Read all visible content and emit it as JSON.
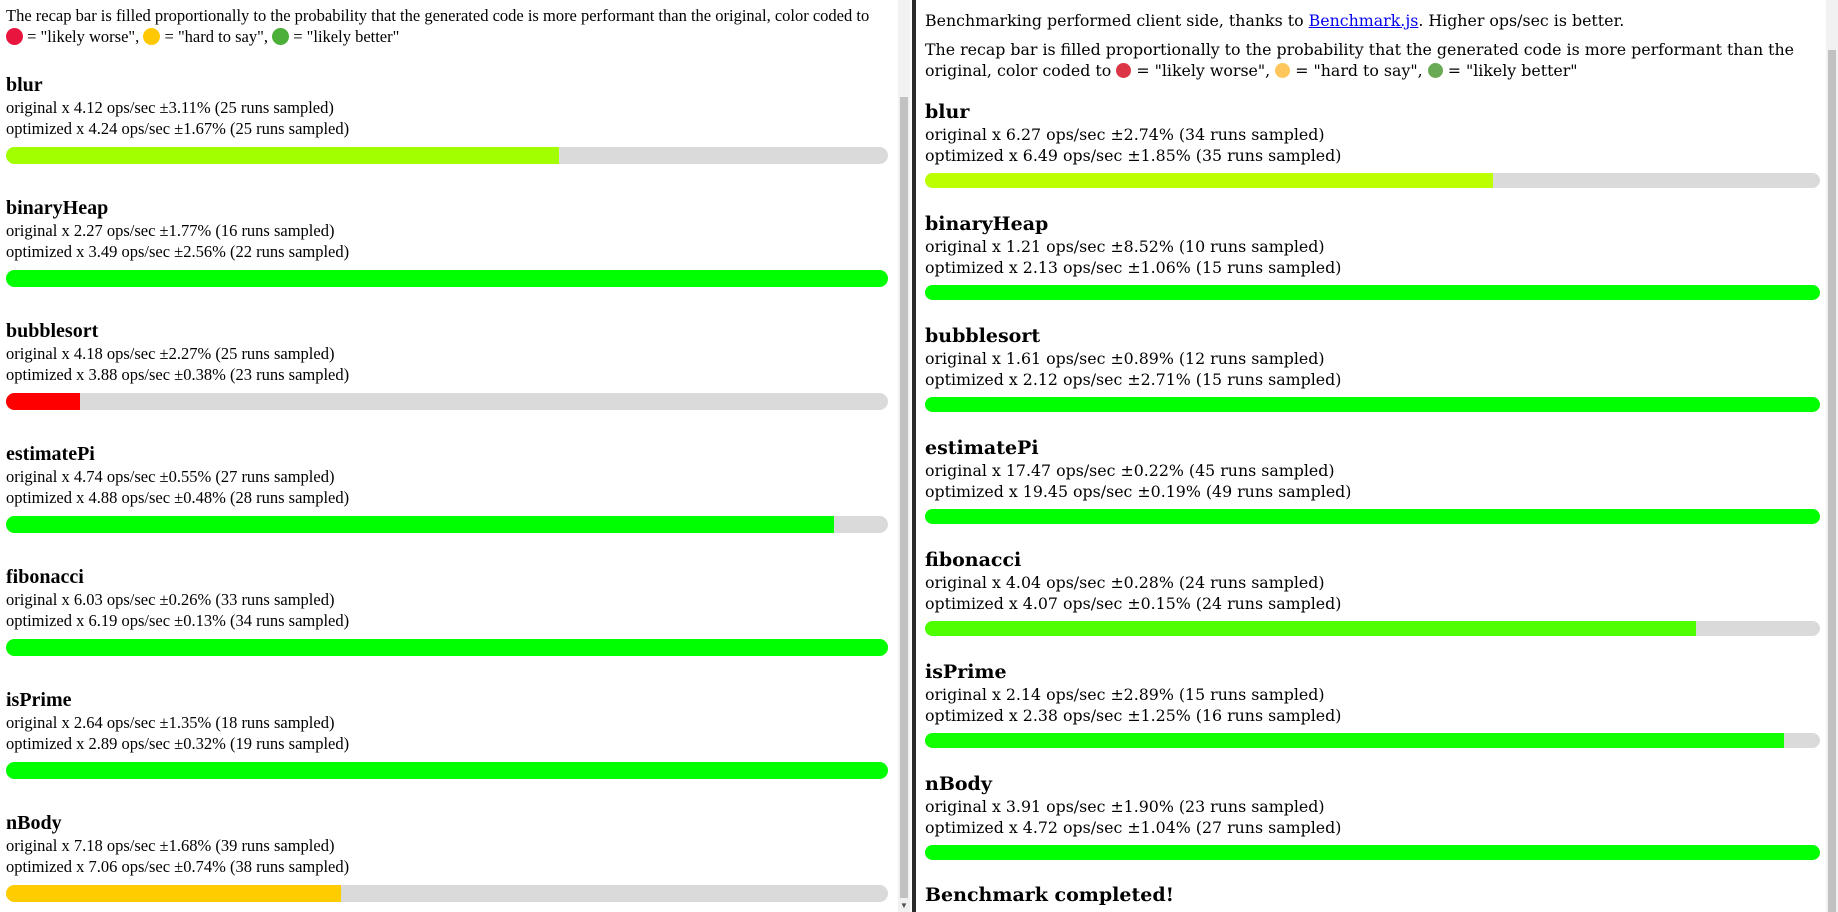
{
  "left": {
    "intro_pre": "The recap bar is filled proportionally to the probability that the generated code is more performant than the original, color coded to ",
    "legend": [
      {
        "color": "#e8163e",
        "label": " = \"likely worse\", "
      },
      {
        "color": "#ffc800",
        "label": " = \"hard to say\", "
      },
      {
        "color": "#4caf3a",
        "label": " = \"likely better\""
      }
    ],
    "benchmarks": [
      {
        "name": "blur",
        "original": "original x 4.12 ops/sec ±3.11% (25 runs sampled)",
        "optimized": "optimized x 4.24 ops/sec ±1.67% (25 runs sampled)",
        "fill": 0.627,
        "color": "#a2ff00"
      },
      {
        "name": "binaryHeap",
        "original": "original x 2.27 ops/sec ±1.77% (16 runs sampled)",
        "optimized": "optimized x 3.49 ops/sec ±2.56% (22 runs sampled)",
        "fill": 1.0,
        "color": "#00ff00"
      },
      {
        "name": "bubblesort",
        "original": "original x 4.18 ops/sec ±2.27% (25 runs sampled)",
        "optimized": "optimized x 3.88 ops/sec ±0.38% (23 runs sampled)",
        "fill": 0.084,
        "color": "#ff0000"
      },
      {
        "name": "estimatePi",
        "original": "original x 4.74 ops/sec ±0.55% (27 runs sampled)",
        "optimized": "optimized x 4.88 ops/sec ±0.48% (28 runs sampled)",
        "fill": 0.939,
        "color": "#00ff00"
      },
      {
        "name": "fibonacci",
        "original": "original x 6.03 ops/sec ±0.26% (33 runs sampled)",
        "optimized": "optimized x 6.19 ops/sec ±0.13% (34 runs sampled)",
        "fill": 1.0,
        "color": "#00ff00"
      },
      {
        "name": "isPrime",
        "original": "original x 2.64 ops/sec ±1.35% (18 runs sampled)",
        "optimized": "optimized x 2.89 ops/sec ±0.32% (19 runs sampled)",
        "fill": 1.0,
        "color": "#00ff00"
      },
      {
        "name": "nBody",
        "original": "original x 7.18 ops/sec ±1.68% (39 runs sampled)",
        "optimized": "optimized x 7.06 ops/sec ±0.74% (38 runs sampled)",
        "fill": 0.38,
        "color": "#ffcc00"
      }
    ]
  },
  "right": {
    "intro1_pre": "Benchmarking performed client side, thanks to ",
    "intro1_link": "Benchmark.js",
    "intro1_post": ". Higher ops/sec is better.",
    "intro_pre": "The recap bar is filled proportionally to the probability that the generated code is more performant than the original, color coded to ",
    "legend": [
      {
        "color": "#dc3545",
        "label": " = \"likely worse\", "
      },
      {
        "color": "#ffc65c",
        "label": " = \"hard to say\", "
      },
      {
        "color": "#6aaa55",
        "label": " = \"likely better\""
      }
    ],
    "benchmarks": [
      {
        "name": "blur",
        "original": "original x 6.27 ops/sec ±2.74% (34 runs sampled)",
        "optimized": "optimized x 6.49 ops/sec ±1.85% (35 runs sampled)",
        "fill": 0.635,
        "color": "#bbff00"
      },
      {
        "name": "binaryHeap",
        "original": "original x 1.21 ops/sec ±8.52% (10 runs sampled)",
        "optimized": "optimized x 2.13 ops/sec ±1.06% (15 runs sampled)",
        "fill": 1.0,
        "color": "#00ff00"
      },
      {
        "name": "bubblesort",
        "original": "original x 1.61 ops/sec ±0.89% (12 runs sampled)",
        "optimized": "optimized x 2.12 ops/sec ±2.71% (15 runs sampled)",
        "fill": 1.0,
        "color": "#00ff00"
      },
      {
        "name": "estimatePi",
        "original": "original x 17.47 ops/sec ±0.22% (45 runs sampled)",
        "optimized": "optimized x 19.45 ops/sec ±0.19% (49 runs sampled)",
        "fill": 1.0,
        "color": "#00ff00"
      },
      {
        "name": "fibonacci",
        "original": "original x 4.04 ops/sec ±0.28% (24 runs sampled)",
        "optimized": "optimized x 4.07 ops/sec ±0.15% (24 runs sampled)",
        "fill": 0.861,
        "color": "#4dff00"
      },
      {
        "name": "isPrime",
        "original": "original x 2.14 ops/sec ±2.89% (15 runs sampled)",
        "optimized": "optimized x 2.38 ops/sec ±1.25% (16 runs sampled)",
        "fill": 0.96,
        "color": "#11ff00"
      },
      {
        "name": "nBody",
        "original": "original x 3.91 ops/sec ±1.90% (23 runs sampled)",
        "optimized": "optimized x 4.72 ops/sec ±1.04% (27 runs sampled)",
        "fill": 1.0,
        "color": "#00ff00"
      }
    ],
    "completed": "Benchmark completed!"
  }
}
